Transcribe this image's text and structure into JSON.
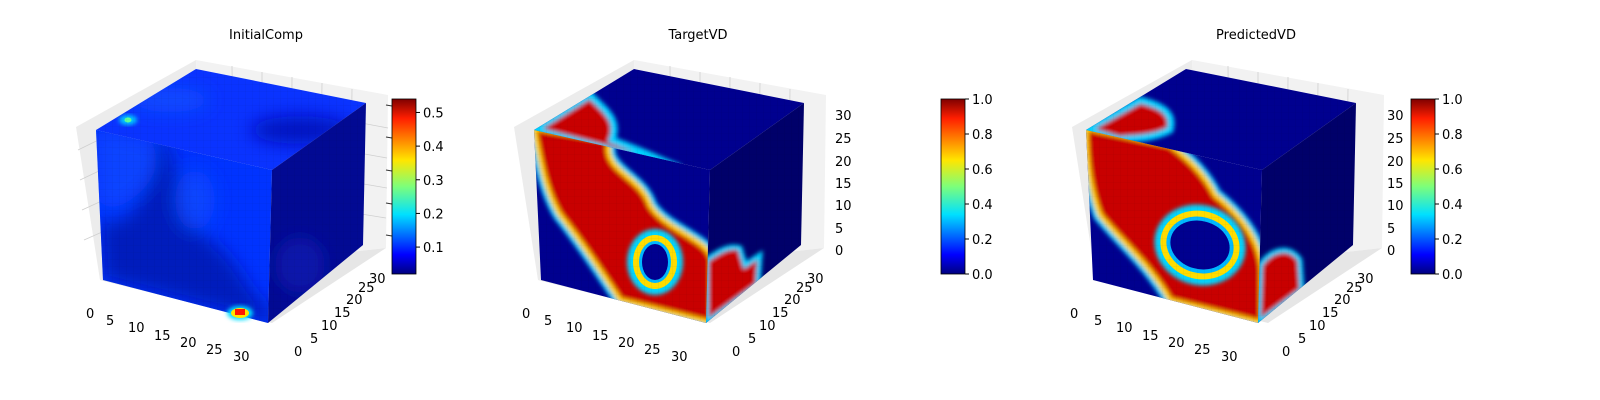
{
  "colormap": "jet",
  "chart_data": [
    {
      "type": "heatmap",
      "title": "InitialComp",
      "volume": "3d-voxel-cube",
      "x_ticks": [
        "0",
        "5",
        "10",
        "15",
        "20",
        "25",
        "30"
      ],
      "y_ticks": [
        "0",
        "5",
        "10",
        "15",
        "20",
        "25",
        "30"
      ],
      "z_ticks": [],
      "colorbar": {
        "range": [
          0.02,
          0.54
        ],
        "ticks": [
          "0.1",
          "0.2",
          "0.3",
          "0.4",
          "0.5"
        ],
        "tick_values": [
          0.1,
          0.2,
          0.3,
          0.4,
          0.5
        ]
      },
      "face_pattern": "diffuse-low"
    },
    {
      "type": "heatmap",
      "title": "TargetVD",
      "volume": "3d-voxel-cube",
      "x_ticks": [
        "0",
        "5",
        "10",
        "15",
        "20",
        "25",
        "30"
      ],
      "y_ticks": [
        "0",
        "5",
        "10",
        "15",
        "20",
        "25",
        "30"
      ],
      "z_ticks": [
        "0",
        "5",
        "10",
        "15",
        "20",
        "25",
        "30"
      ],
      "colorbar": {
        "range": [
          0.0,
          1.0
        ],
        "ticks": [
          "0.0",
          "0.2",
          "0.4",
          "0.6",
          "0.8",
          "1.0"
        ],
        "tick_values": [
          0.0,
          0.2,
          0.4,
          0.6,
          0.8,
          1.0
        ]
      },
      "face_pattern": "band-with-ring"
    },
    {
      "type": "heatmap",
      "title": "PredictedVD",
      "volume": "3d-voxel-cube",
      "x_ticks": [
        "0",
        "5",
        "10",
        "15",
        "20",
        "25",
        "30"
      ],
      "y_ticks": [
        "0",
        "5",
        "10",
        "15",
        "20",
        "25",
        "30"
      ],
      "z_ticks": [
        "0",
        "5",
        "10",
        "15",
        "20",
        "25",
        "30"
      ],
      "colorbar": {
        "range": [
          0.0,
          1.0
        ],
        "ticks": [
          "0.0",
          "0.2",
          "0.4",
          "0.6",
          "0.8",
          "1.0"
        ],
        "tick_values": [
          0.0,
          0.2,
          0.4,
          0.6,
          0.8,
          1.0
        ]
      },
      "face_pattern": "band-with-ring"
    }
  ]
}
